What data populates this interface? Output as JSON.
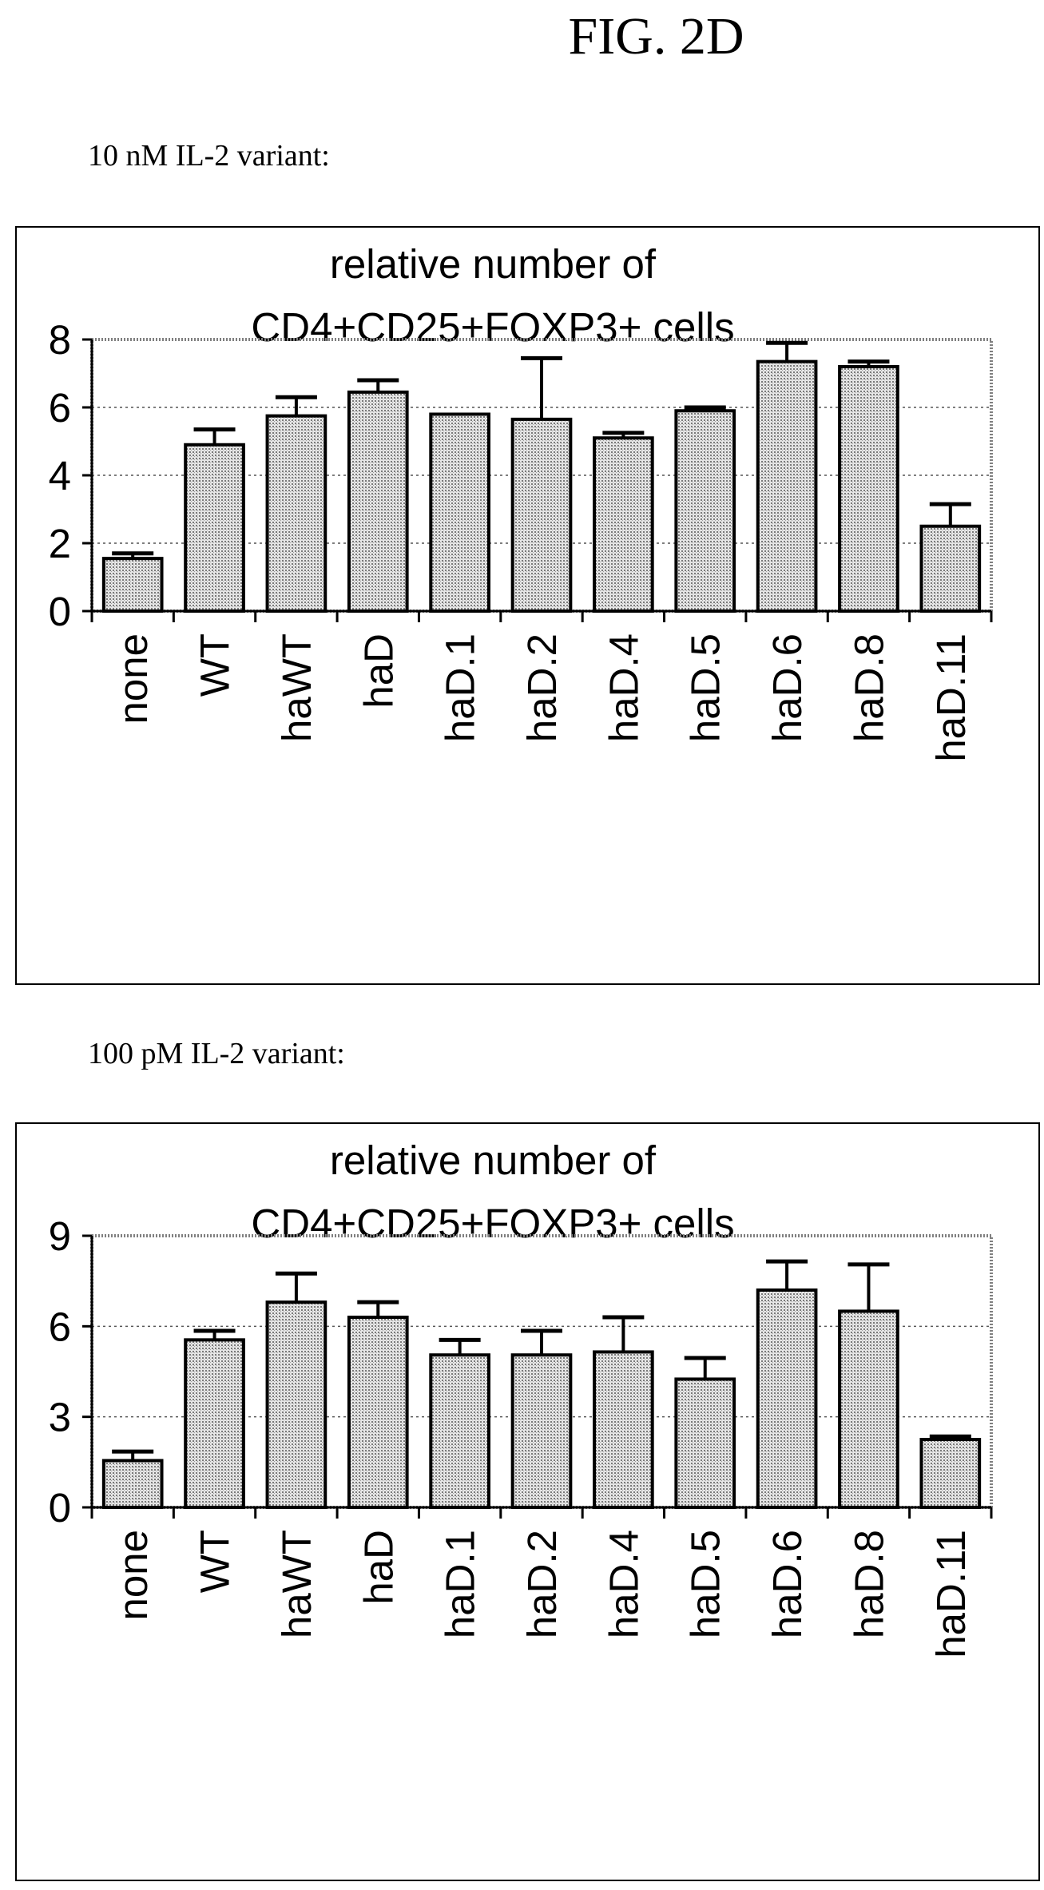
{
  "figure": {
    "title": "FIG. 2D",
    "panels": [
      {
        "caption": "10 nM IL-2 variant:"
      },
      {
        "caption": "100 pM IL-2 variant:"
      }
    ]
  },
  "chart_data": [
    {
      "type": "bar",
      "title": "relative number of",
      "subtitle": "CD4+CD25+FOXP3+ cells",
      "categories": [
        "none",
        "WT",
        "haWT",
        "haD",
        "haD.1",
        "haD.2",
        "haD.4",
        "haD.5",
        "haD.6",
        "haD.8",
        "haD.11"
      ],
      "values": [
        1.55,
        4.9,
        5.75,
        6.45,
        5.8,
        5.65,
        5.1,
        5.9,
        7.35,
        7.2,
        2.5
      ],
      "errors": [
        0.15,
        0.45,
        0.55,
        0.35,
        0.0,
        1.8,
        0.15,
        0.1,
        0.55,
        0.15,
        0.65
      ],
      "ylim": [
        0,
        8
      ],
      "yticks": [
        0,
        2,
        4,
        6,
        8
      ],
      "xlabel": "",
      "ylabel": "",
      "grid": true,
      "bar_color": "#cfcfcf"
    },
    {
      "type": "bar",
      "title": "relative number of",
      "subtitle": "CD4+CD25+FOXP3+ cells",
      "categories": [
        "none",
        "WT",
        "haWT",
        "haD",
        "haD.1",
        "haD.2",
        "haD.4",
        "haD.5",
        "haD.6",
        "haD.8",
        "haD.11"
      ],
      "values": [
        1.55,
        5.55,
        6.8,
        6.3,
        5.05,
        5.05,
        5.15,
        4.25,
        7.2,
        6.5,
        2.25
      ],
      "errors": [
        0.3,
        0.3,
        0.95,
        0.5,
        0.5,
        0.8,
        1.15,
        0.7,
        0.95,
        1.55,
        0.1
      ],
      "ylim": [
        0,
        9
      ],
      "yticks": [
        0,
        3,
        6,
        9
      ],
      "xlabel": "",
      "ylabel": "",
      "grid": true,
      "bar_color": "#cfcfcf"
    }
  ]
}
